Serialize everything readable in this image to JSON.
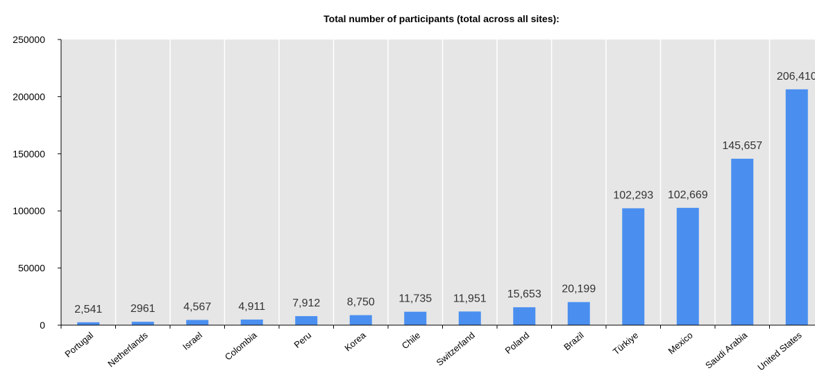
{
  "chart_data": {
    "type": "bar",
    "title": "Total number of participants (total across all sites):",
    "xlabel": "",
    "ylabel": "",
    "categories": [
      "Portugal",
      "Netherlands",
      "Israel",
      "Colombia",
      "Peru",
      "Korea",
      "Chile",
      "Switzerland",
      "Poland",
      "Brazil",
      "Türkiye",
      "Mexico",
      "Saudi Arabia",
      "United States"
    ],
    "values": [
      2541,
      2961,
      4567,
      4911,
      7912,
      8750,
      11735,
      11951,
      15653,
      20199,
      102293,
      102669,
      145657,
      206410
    ],
    "data_labels": [
      "2,541",
      "2961",
      "4,567",
      "4,911",
      "7,912",
      "8,750",
      "11,735",
      "11,951",
      "15,653",
      "20,199",
      "102,293",
      "102,669",
      "145,657",
      "206,410"
    ],
    "ylim": [
      0,
      250000
    ],
    "yticks": [
      0,
      50000,
      100000,
      150000,
      200000,
      250000
    ],
    "ytick_labels": [
      "0",
      "50000",
      "100000",
      "150000",
      "200000",
      "250000"
    ],
    "grid": "vertical",
    "legend": "none",
    "colors": {
      "bar": "#4a8ff0",
      "plot_background": "#e6e6e6",
      "gridline": "#ffffff",
      "axis": "#000000"
    }
  }
}
